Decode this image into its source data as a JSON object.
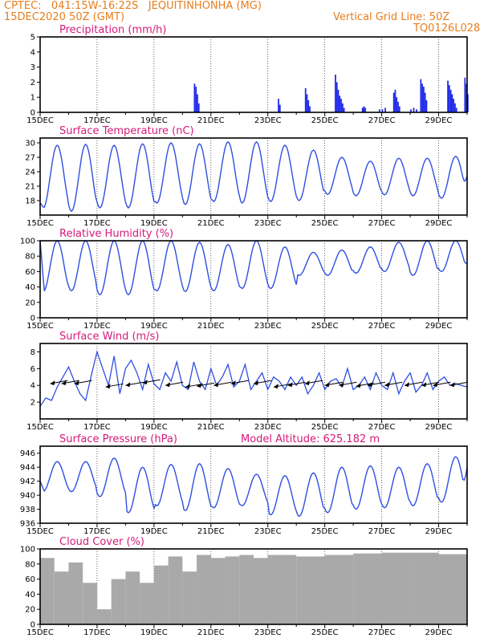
{
  "header": {
    "line1": "CPTEC:   041:15W-16:22S   JEQUITINHONHA (MG)",
    "line2": "15DEC2020 50Z (GMT)",
    "right1": "Vertical Grid Line: 50Z",
    "right2": "TQ0126L028"
  },
  "colors": {
    "line": "#2f4fe0",
    "bar": "#1f2ae8",
    "cloud": "#a9a9a9",
    "title": "#d6197a",
    "header": "#e87d1e"
  },
  "x_axis": {
    "labels": [
      "15DEC",
      "17DEC",
      "19DEC",
      "21DEC",
      "23DEC",
      "25DEC",
      "27DEC",
      "29DEC"
    ],
    "range_days": [
      0,
      15
    ]
  },
  "chart_data": [
    {
      "type": "bar",
      "title": "Precipitation (mm/h)",
      "ylim": [
        0,
        5
      ],
      "yticks": [
        0,
        1,
        2,
        3,
        4,
        5
      ],
      "x_days": [
        5.4,
        5.45,
        5.5,
        5.55,
        8.35,
        8.4,
        9.3,
        9.35,
        9.4,
        9.45,
        10.35,
        10.4,
        10.45,
        10.5,
        10.55,
        10.6,
        10.65,
        11.3,
        11.35,
        11.4,
        11.9,
        12.0,
        12.1,
        12.4,
        12.45,
        12.5,
        12.55,
        12.6,
        13.0,
        13.1,
        13.2,
        13.35,
        13.4,
        13.45,
        13.5,
        13.55,
        14.3,
        14.35,
        14.4,
        14.45,
        14.5,
        14.55,
        14.6,
        14.9,
        14.95,
        15.0
      ],
      "values": [
        1.9,
        1.7,
        1.2,
        0.6,
        0.9,
        0.5,
        1.6,
        1.2,
        0.8,
        0.4,
        2.5,
        2.0,
        1.5,
        1.1,
        0.9,
        0.6,
        0.3,
        0.3,
        0.4,
        0.3,
        0.2,
        0.2,
        0.3,
        1.3,
        1.5,
        1.0,
        0.7,
        0.4,
        0.2,
        0.3,
        0.2,
        2.2,
        1.9,
        1.7,
        1.3,
        0.8,
        2.1,
        1.8,
        1.5,
        1.2,
        0.9,
        0.6,
        0.3,
        2.3,
        1.9,
        1.2
      ]
    },
    {
      "type": "line",
      "title": "Surface Temperature (nC)",
      "ylim": [
        15,
        31
      ],
      "yticks": [
        18,
        21,
        24,
        27,
        30
      ],
      "daily_max": [
        29.5,
        29.7,
        29.5,
        29.8,
        30.0,
        29.8,
        30.2,
        30.2,
        29.5,
        28.5,
        27.0,
        26.2,
        26.8,
        26.8,
        27.2
      ],
      "daily_min": [
        16.3,
        15.8,
        16.5,
        16.5,
        17.5,
        17.2,
        17.8,
        17.5,
        17.8,
        18.0,
        19.3,
        19.0,
        19.2,
        19.0,
        18.5
      ],
      "start_value": 17.5,
      "end_value": 23.2
    },
    {
      "type": "line",
      "title": "Relative Humidity (%)",
      "ylim": [
        0,
        100
      ],
      "yticks": [
        0,
        20,
        40,
        60,
        80,
        100
      ],
      "daily_max": [
        100,
        100,
        100,
        100,
        100,
        98,
        95,
        100,
        92,
        85,
        88,
        92,
        98,
        100,
        100
      ],
      "daily_min": [
        33,
        35,
        30,
        30,
        35,
        34,
        35,
        38,
        38,
        55,
        55,
        58,
        60,
        55,
        60
      ],
      "start_value": 100,
      "end_value": 72
    },
    {
      "type": "line",
      "title": "Surface Wind (m/s)",
      "ylim": [
        0,
        9
      ],
      "yticks": [
        2,
        4,
        6,
        8
      ],
      "x_days": [
        0,
        0.2,
        0.4,
        0.6,
        0.8,
        1.0,
        1.2,
        1.4,
        1.6,
        1.8,
        2.0,
        2.2,
        2.4,
        2.6,
        2.8,
        3.0,
        3.2,
        3.4,
        3.6,
        3.8,
        4.0,
        4.2,
        4.4,
        4.6,
        4.8,
        5.0,
        5.2,
        5.4,
        5.6,
        5.8,
        6.0,
        6.2,
        6.4,
        6.6,
        6.8,
        7.0,
        7.2,
        7.4,
        7.6,
        7.8,
        8.0,
        8.2,
        8.4,
        8.6,
        8.8,
        9.0,
        9.2,
        9.4,
        9.6,
        9.8,
        10.0,
        10.2,
        10.4,
        10.6,
        10.8,
        11.0,
        11.2,
        11.4,
        11.6,
        11.8,
        12.0,
        12.2,
        12.4,
        12.6,
        12.8,
        13.0,
        13.2,
        13.4,
        13.6,
        13.8,
        14.0,
        14.2,
        14.4,
        14.6,
        14.8,
        15.0
      ],
      "values": [
        1.5,
        2.5,
        2.2,
        3.8,
        5.0,
        6.2,
        4.5,
        3.0,
        2.2,
        5.2,
        8.0,
        6.0,
        4.0,
        7.5,
        3.0,
        6.0,
        7.0,
        5.5,
        3.5,
        6.5,
        4.2,
        3.5,
        5.5,
        4.5,
        6.8,
        4.0,
        3.5,
        6.8,
        4.5,
        3.5,
        6.0,
        4.0,
        5.0,
        6.5,
        3.8,
        4.5,
        6.5,
        3.5,
        4.5,
        5.5,
        3.5,
        5.0,
        4.5,
        3.5,
        5.0,
        4.0,
        5.0,
        3.0,
        4.0,
        5.5,
        3.5,
        4.5,
        4.8,
        3.8,
        6.0,
        3.5,
        4.0,
        5.0,
        3.5,
        5.5,
        4.0,
        3.5,
        5.5,
        3.0,
        4.5,
        5.5,
        3.2,
        4.0,
        5.5,
        3.5,
        4.5,
        5.0,
        4.0,
        4.2,
        4.0,
        3.8
      ],
      "arrows": {
        "x_days": [
          0.35,
          0.75,
          1.2,
          2.3,
          3.0,
          3.6,
          4.4,
          5.1,
          5.5,
          6.1,
          6.7,
          7.5,
          8.2,
          8.7,
          9.3,
          10.0,
          10.5,
          11.1,
          11.5,
          12.1,
          12.8,
          13.4,
          13.8,
          14.4
        ],
        "y": [
          4.2,
          4.2,
          4.2,
          3.8,
          4.0,
          4.3,
          4.0,
          3.8,
          3.9,
          4.0,
          4.2,
          4.2,
          3.8,
          4.0,
          4.2,
          4.0,
          4.0,
          3.9,
          4.0,
          4.0,
          4.0,
          4.0,
          4.0,
          4.0
        ]
      }
    },
    {
      "type": "line",
      "title": "Surface Pressure (hPa)",
      "annotation": "Model Altitude: 625.182 m",
      "ylim": [
        936,
        947
      ],
      "yticks": [
        936,
        938,
        940,
        942,
        944,
        946
      ],
      "daily_max": [
        944.8,
        944.8,
        945.3,
        944.0,
        944.4,
        944.5,
        943.8,
        943.0,
        942.8,
        943.2,
        944.0,
        944.2,
        944.0,
        944.5,
        945.5
      ],
      "daily_min": [
        940.5,
        940.5,
        939.8,
        937.5,
        938.5,
        937.8,
        938.2,
        938.5,
        937.2,
        937.0,
        937.5,
        938.0,
        938.2,
        938.5,
        939.0
      ],
      "start_value": 942.0,
      "end_value": 944.0
    },
    {
      "type": "bar",
      "title": "Cloud Cover (%)",
      "ylim": [
        0,
        100
      ],
      "yticks": [
        0,
        20,
        40,
        60,
        80,
        100
      ],
      "segments": [
        {
          "x_start": 0.0,
          "x_end": 0.5,
          "value": 88
        },
        {
          "x_start": 0.5,
          "x_end": 1.0,
          "value": 70
        },
        {
          "x_start": 1.0,
          "x_end": 1.5,
          "value": 82
        },
        {
          "x_start": 1.5,
          "x_end": 2.0,
          "value": 55
        },
        {
          "x_start": 2.0,
          "x_end": 2.5,
          "value": 20
        },
        {
          "x_start": 2.5,
          "x_end": 3.0,
          "value": 60
        },
        {
          "x_start": 3.0,
          "x_end": 3.5,
          "value": 70
        },
        {
          "x_start": 3.5,
          "x_end": 4.0,
          "value": 55
        },
        {
          "x_start": 4.0,
          "x_end": 4.5,
          "value": 78
        },
        {
          "x_start": 4.5,
          "x_end": 5.0,
          "value": 90
        },
        {
          "x_start": 5.0,
          "x_end": 5.5,
          "value": 70
        },
        {
          "x_start": 5.5,
          "x_end": 6.0,
          "value": 92
        },
        {
          "x_start": 6.0,
          "x_end": 6.5,
          "value": 88
        },
        {
          "x_start": 6.5,
          "x_end": 7.0,
          "value": 90
        },
        {
          "x_start": 7.0,
          "x_end": 7.5,
          "value": 92
        },
        {
          "x_start": 7.5,
          "x_end": 8.0,
          "value": 88
        },
        {
          "x_start": 8.0,
          "x_end": 9.0,
          "value": 92
        },
        {
          "x_start": 9.0,
          "x_end": 10.0,
          "value": 90
        },
        {
          "x_start": 10.0,
          "x_end": 11.0,
          "value": 92
        },
        {
          "x_start": 11.0,
          "x_end": 12.0,
          "value": 94
        },
        {
          "x_start": 12.0,
          "x_end": 13.0,
          "value": 95
        },
        {
          "x_start": 13.0,
          "x_end": 14.0,
          "value": 95
        },
        {
          "x_start": 14.0,
          "x_end": 15.0,
          "value": 93
        }
      ]
    }
  ]
}
